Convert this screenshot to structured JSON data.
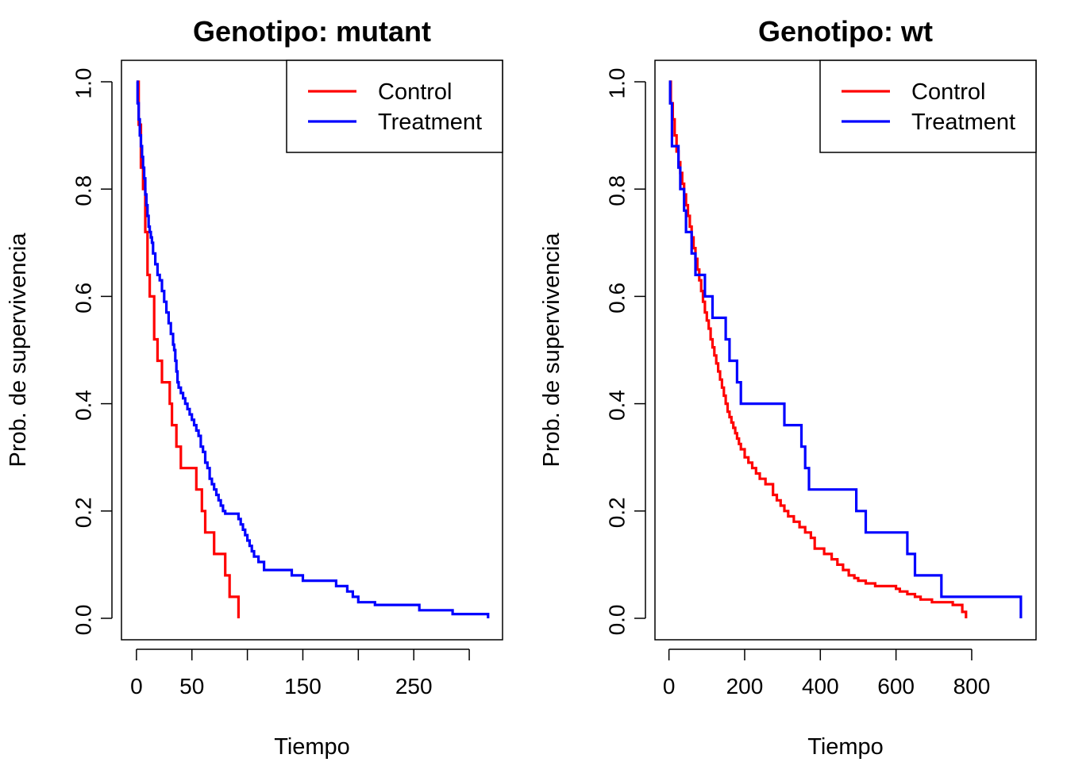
{
  "chart_data": [
    {
      "type": "line",
      "step": true,
      "title": "Genotipo: mutant",
      "xlabel": "Tiempo",
      "ylabel": "Prob. de supervivencia",
      "xlim": [
        -13.5,
        330
      ],
      "ylim": [
        -0.04,
        1.04
      ],
      "xticks": [
        0,
        50,
        100,
        150,
        200,
        250,
        300
      ],
      "xtick_labels": [
        "0",
        "50",
        "",
        "150",
        "",
        "250",
        ""
      ],
      "yticks": [
        0,
        0.2,
        0.4,
        0.6,
        0.8,
        1.0
      ],
      "ytick_labels": [
        "0.0",
        "0.2",
        "0.4",
        "0.6",
        "0.8",
        "1.0"
      ],
      "legend": {
        "position": "top-right",
        "entries": [
          "Control",
          "Treatment"
        ]
      },
      "series": [
        {
          "name": "Control",
          "color": "#ff0000",
          "x": [
            0,
            2,
            4,
            6,
            8,
            10,
            12,
            16,
            19,
            23,
            30,
            32,
            36,
            40,
            54,
            59,
            62,
            70,
            80,
            84,
            92
          ],
          "y": [
            1.0,
            0.92,
            0.84,
            0.8,
            0.72,
            0.64,
            0.6,
            0.52,
            0.48,
            0.44,
            0.4,
            0.36,
            0.32,
            0.28,
            0.24,
            0.2,
            0.16,
            0.12,
            0.08,
            0.04,
            0.0
          ]
        },
        {
          "name": "Treatment",
          "color": "#0000ff",
          "x": [
            0,
            1,
            2,
            3,
            4,
            5,
            6,
            7,
            8,
            9,
            10,
            11,
            12,
            13,
            14,
            15,
            17,
            19,
            21,
            23,
            25,
            27,
            29,
            31,
            33,
            34,
            35,
            36,
            37,
            38,
            40,
            42,
            44,
            46,
            48,
            50,
            52,
            54,
            56,
            58,
            60,
            62,
            64,
            66,
            68,
            70,
            72,
            74,
            76,
            78,
            80,
            92,
            94,
            96,
            98,
            100,
            102,
            104,
            106,
            110,
            115,
            140,
            150,
            180,
            190,
            195,
            200,
            215,
            255,
            285,
            317
          ],
          "y": [
            1.0,
            0.96,
            0.93,
            0.9,
            0.88,
            0.86,
            0.84,
            0.82,
            0.79,
            0.77,
            0.75,
            0.73,
            0.72,
            0.71,
            0.7,
            0.68,
            0.66,
            0.64,
            0.63,
            0.61,
            0.59,
            0.57,
            0.55,
            0.53,
            0.51,
            0.5,
            0.48,
            0.46,
            0.44,
            0.43,
            0.42,
            0.41,
            0.4,
            0.39,
            0.38,
            0.37,
            0.36,
            0.35,
            0.34,
            0.32,
            0.31,
            0.29,
            0.28,
            0.26,
            0.25,
            0.24,
            0.23,
            0.22,
            0.21,
            0.2,
            0.195,
            0.185,
            0.175,
            0.165,
            0.155,
            0.145,
            0.135,
            0.125,
            0.115,
            0.105,
            0.09,
            0.08,
            0.07,
            0.06,
            0.05,
            0.04,
            0.03,
            0.025,
            0.015,
            0.008,
            0.0
          ]
        }
      ]
    },
    {
      "type": "line",
      "step": true,
      "title": "Genotipo: wt",
      "xlabel": "Tiempo",
      "ylabel": "Prob. de supervivencia",
      "xlim": [
        -37,
        970
      ],
      "ylim": [
        -0.04,
        1.04
      ],
      "xticks": [
        0,
        200,
        400,
        600,
        800
      ],
      "xtick_labels": [
        "0",
        "200",
        "400",
        "600",
        "800"
      ],
      "yticks": [
        0,
        0.2,
        0.4,
        0.6,
        0.8,
        1.0
      ],
      "ytick_labels": [
        "0.0",
        "0.2",
        "0.4",
        "0.6",
        "0.8",
        "1.0"
      ],
      "legend": {
        "position": "top-right",
        "entries": [
          "Control",
          "Treatment"
        ]
      },
      "series": [
        {
          "name": "Control",
          "color": "#ff0000",
          "x": [
            0,
            5,
            10,
            15,
            20,
            25,
            30,
            35,
            40,
            45,
            50,
            55,
            60,
            65,
            70,
            75,
            80,
            85,
            90,
            95,
            100,
            105,
            110,
            115,
            120,
            125,
            130,
            135,
            140,
            145,
            150,
            155,
            160,
            165,
            170,
            175,
            180,
            185,
            190,
            200,
            210,
            220,
            230,
            240,
            255,
            275,
            285,
            295,
            305,
            315,
            330,
            345,
            360,
            375,
            385,
            410,
            430,
            445,
            460,
            475,
            490,
            500,
            520,
            545,
            600,
            610,
            630,
            650,
            665,
            695,
            750,
            775,
            785
          ],
          "y": [
            1.0,
            0.96,
            0.93,
            0.9,
            0.87,
            0.85,
            0.83,
            0.81,
            0.79,
            0.77,
            0.75,
            0.73,
            0.71,
            0.69,
            0.67,
            0.65,
            0.63,
            0.61,
            0.59,
            0.57,
            0.555,
            0.54,
            0.52,
            0.505,
            0.49,
            0.475,
            0.46,
            0.445,
            0.43,
            0.415,
            0.4,
            0.385,
            0.375,
            0.365,
            0.355,
            0.345,
            0.335,
            0.325,
            0.315,
            0.3,
            0.29,
            0.28,
            0.27,
            0.26,
            0.25,
            0.23,
            0.22,
            0.21,
            0.2,
            0.19,
            0.18,
            0.17,
            0.16,
            0.15,
            0.13,
            0.12,
            0.11,
            0.1,
            0.09,
            0.08,
            0.075,
            0.07,
            0.065,
            0.06,
            0.055,
            0.05,
            0.045,
            0.04,
            0.035,
            0.03,
            0.025,
            0.012,
            0.0
          ]
        },
        {
          "name": "Treatment",
          "color": "#0000ff",
          "x": [
            0,
            3,
            8,
            12,
            25,
            30,
            40,
            45,
            50,
            60,
            70,
            78,
            95,
            115,
            150,
            160,
            170,
            180,
            190,
            305,
            320,
            350,
            360,
            370,
            495,
            520,
            630,
            640,
            650,
            720,
            930
          ],
          "y": [
            1.0,
            0.96,
            0.88,
            0.88,
            0.84,
            0.8,
            0.76,
            0.72,
            0.72,
            0.68,
            0.64,
            0.64,
            0.6,
            0.56,
            0.52,
            0.48,
            0.48,
            0.44,
            0.4,
            0.36,
            0.36,
            0.32,
            0.28,
            0.24,
            0.2,
            0.16,
            0.12,
            0.12,
            0.08,
            0.04,
            0.0
          ]
        }
      ]
    }
  ]
}
